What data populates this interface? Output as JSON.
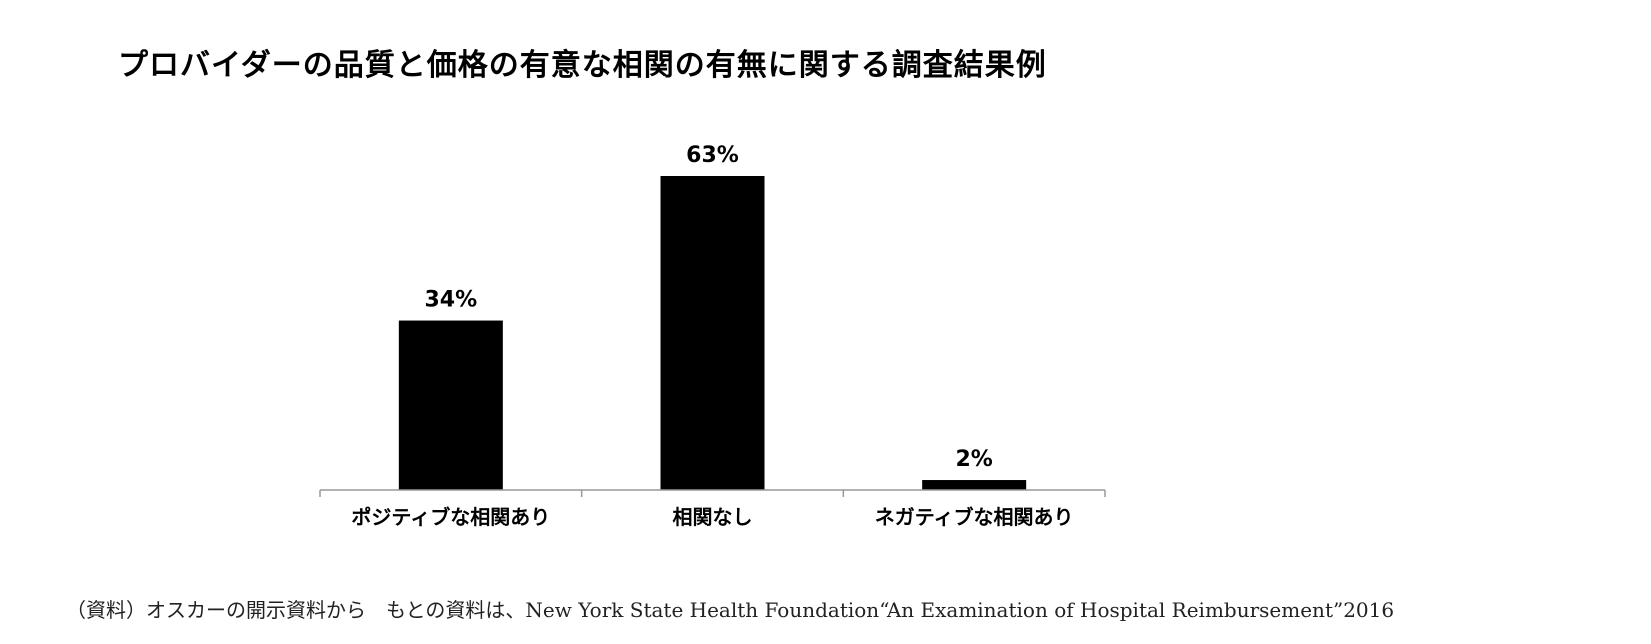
{
  "title": "プロバイダーの品質と価格の有意な相関の有無に関する調査結果例",
  "source": "（資料）オスカーの開示資料から　もとの資料は、New York State Health Foundation“An Examination of Hospital Reimbursement”2016",
  "chart_data": {
    "type": "bar",
    "categories": [
      "ポジティブな相関あり",
      "相関なし",
      "ネガティブな相関あり"
    ],
    "values": [
      34,
      63,
      2
    ],
    "data_labels": [
      "34%",
      "63%",
      "2%"
    ],
    "unit": "%",
    "ylim": [
      0,
      63
    ],
    "grid": false,
    "bar_color": "#000000",
    "axis_color": "#999999"
  }
}
